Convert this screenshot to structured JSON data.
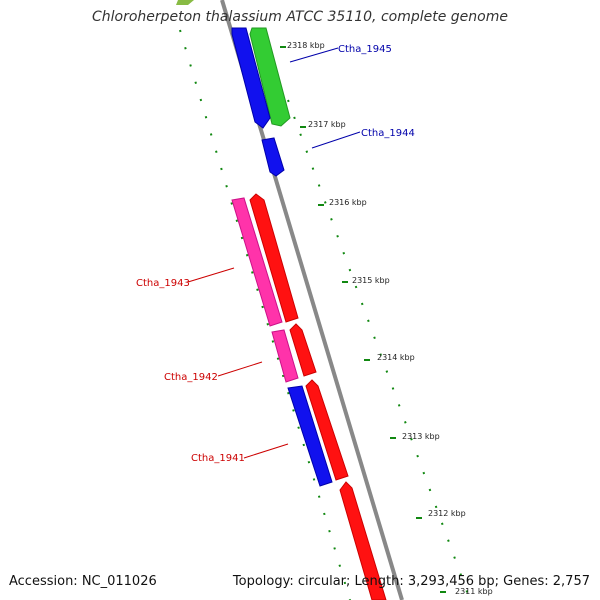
{
  "title": "Chloroherpeton thalassium ATCC 35110, complete genome",
  "footer": {
    "accession": "Accession: NC_011026",
    "summary": "Topology: circular; Length: 3,293,456 bp; Genes: 2,757"
  },
  "ticks": [
    "2318 kbp",
    "2317 kbp",
    "2316 kbp",
    "2315 kbp",
    "2314 kbp",
    "2313 kbp",
    "2312 kbp",
    "2311 kbp"
  ],
  "gene_labels": {
    "ctha_1945": "Ctha_1945",
    "ctha_1944": "Ctha_1944",
    "ctha_1943": "Ctha_1943",
    "ctha_1942": "Ctha_1942",
    "ctha_1941": "Ctha_1941"
  },
  "colors": {
    "backbone": "#888888",
    "forward_cds": "#ff0000",
    "reverse_cds": "#ff33aa",
    "blue_cds": "#0000ee",
    "green_cds": "#33cc33",
    "tick": "#118811",
    "label_blue": "#0000aa",
    "label_red": "#cc0000"
  }
}
